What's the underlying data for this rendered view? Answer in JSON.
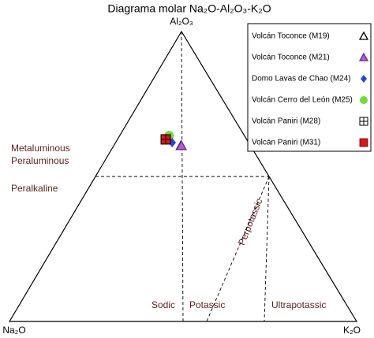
{
  "chart_data": {
    "type": "ternary",
    "title": "Diagrama molar Na₂O-Al₂O₃-K₂O",
    "vertices": {
      "left": "Na₂O",
      "top": "Al₂O₃",
      "right": "K₂O"
    },
    "regions": [
      "Metaluminous",
      "Peraluminous",
      "Peralkaline",
      "Sodic",
      "Potassic",
      "Ultrapotassic",
      "Perpotassic"
    ],
    "boundaries": [
      [
        [
          0.5,
          0.5,
          0
        ],
        [
          0,
          0.5,
          0.5
        ]
      ],
      [
        [
          0,
          1,
          0
        ],
        [
          0.5,
          0,
          0.5
        ]
      ],
      [
        [
          0,
          0.5,
          0.5
        ],
        [
          0.266,
          0,
          0.734
        ]
      ],
      [
        [
          0,
          0.5,
          0.5
        ],
        [
          0.432,
          0,
          0.568
        ]
      ]
    ],
    "series": [
      {
        "name": "Volcán Toconce (M19)",
        "marker": "open-triangle",
        "color": "#000000",
        "values": [
          0.2,
          0.606,
          0.194
        ]
      },
      {
        "name": "Volcán Toconce (M21)",
        "marker": "triangle",
        "color": "#b05ad6",
        "values": [
          0.199,
          0.606,
          0.195
        ]
      },
      {
        "name": "Domo Lavas de Chao (M24)",
        "marker": "diamond",
        "color": "#2346d8",
        "values": [
          0.22,
          0.617,
          0.163
        ]
      },
      {
        "name": "Volcán Cerro del León (M25)",
        "marker": "circle",
        "color": "#6fdc3a",
        "values": [
          0.217,
          0.641,
          0.142
        ]
      },
      {
        "name": "Volcán Paniri (M28)",
        "marker": "cross-square",
        "color": "#000000",
        "values": [
          0.233,
          0.628,
          0.139
        ]
      },
      {
        "name": "Volcán Paniri (M31)",
        "marker": "square",
        "color": "#e01515",
        "values": [
          0.233,
          0.628,
          0.139
        ]
      }
    ]
  }
}
